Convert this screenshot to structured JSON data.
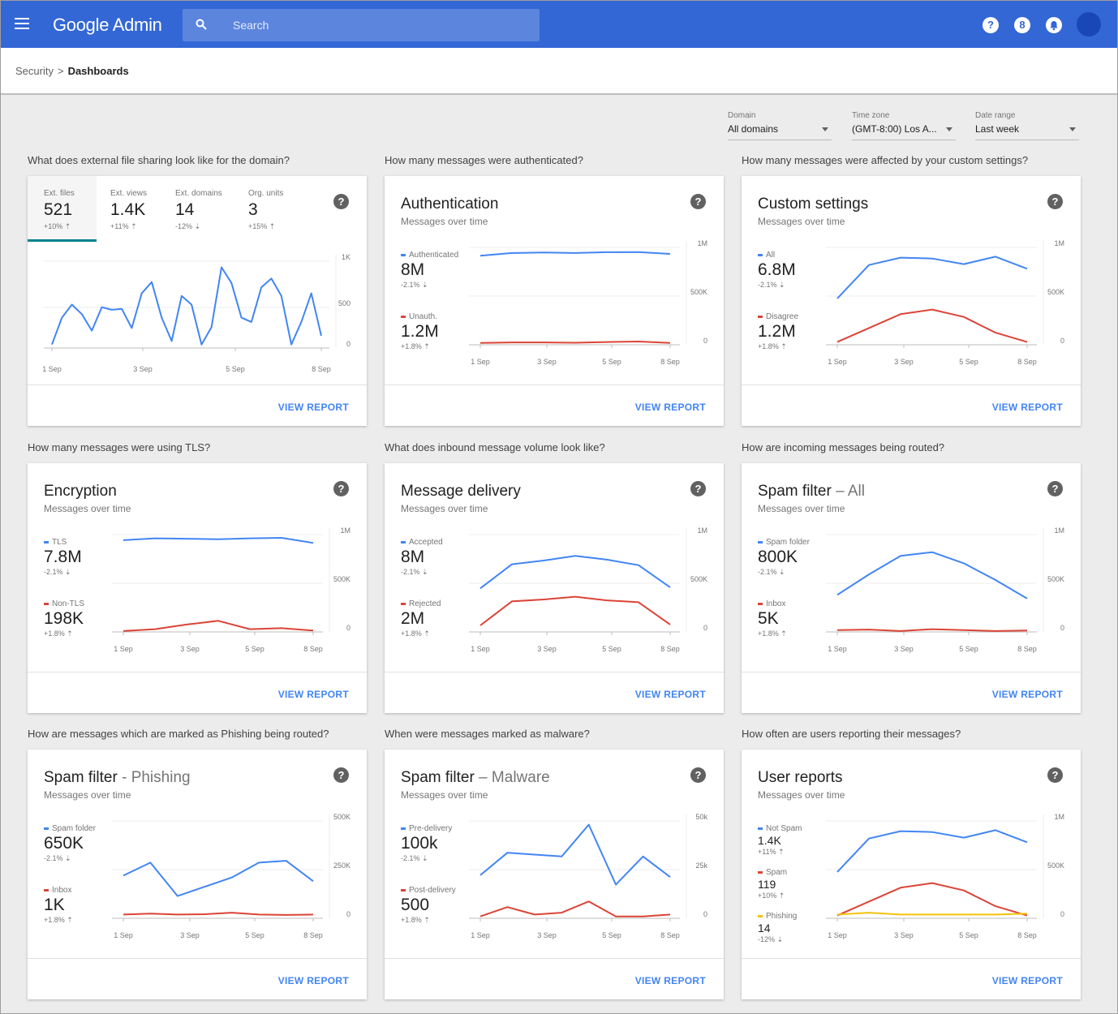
{
  "header": {
    "app_title": "Google Admin",
    "search_placeholder": "Search",
    "icons": [
      "help-icon",
      "apps-icon",
      "notifications-icon"
    ]
  },
  "breadcrumb": {
    "parent": "Security",
    "separator": ">",
    "current": "Dashboards"
  },
  "filters": [
    {
      "label": "Domain",
      "value": "All domains"
    },
    {
      "label": "Time zone",
      "value": "(GMT-8:00) Los A..."
    },
    {
      "label": "Date range",
      "value": "Last week"
    }
  ],
  "colors": {
    "blue": "#4285f4",
    "red": "#db4437",
    "yellow": "#f4c20d",
    "teal": "#00838f",
    "topbar": "#3367d6"
  },
  "view_report": "VIEW REPORT",
  "cards": [
    {
      "question": "What does external file sharing look like for the domain?",
      "tabs": [
        {
          "label": "Ext. files",
          "value": "521",
          "delta": "+10% ⇡"
        },
        {
          "label": "Ext. views",
          "value": "1.4K",
          "delta": "+11% ⇡"
        },
        {
          "label": "Ext. domains",
          "value": "14",
          "delta": "-12% ⇣"
        },
        {
          "label": "Org. units",
          "value": "3",
          "delta": "+15% ⇡"
        }
      ],
      "yticks": [
        "1K",
        "500",
        "0"
      ],
      "xticks": [
        "1 Sep",
        "3 Sep",
        "5 Sep",
        "8 Sep"
      ],
      "series": [
        {
          "color": "blue",
          "values": [
            40,
            350,
            500,
            390,
            200,
            470,
            440,
            450,
            230,
            630,
            760,
            350,
            80,
            600,
            500,
            40,
            240,
            930,
            750,
            350,
            300,
            700,
            800,
            600,
            40,
            300,
            630,
            140
          ]
        }
      ],
      "ymax": 1000
    },
    {
      "question": "How many messages were authenticated?",
      "title": "Authentication",
      "title_sub": "",
      "subtitle": "Messages over time",
      "legend": [
        {
          "name": "Authenticated",
          "color": "blue",
          "value": "8M",
          "delta": "-2.1% ⇣"
        },
        {
          "name": "Unauth.",
          "color": "red",
          "value": "1.2M",
          "delta": "+1.8% ⇡"
        }
      ],
      "yticks": [
        "1M",
        "500K",
        "0"
      ],
      "xticks": [
        "1 Sep",
        "3 Sep",
        "5 Sep",
        "8 Sep"
      ],
      "series": [
        {
          "color": "blue",
          "values": [
            960,
            990,
            995,
            990,
            998,
            1000,
            980
          ]
        },
        {
          "color": "red",
          "values": [
            20,
            25,
            25,
            22,
            30,
            35,
            20
          ]
        }
      ],
      "ymax": 1050
    },
    {
      "question": "How many messages were affected by your custom settings?",
      "title": "Custom settings",
      "title_sub": "",
      "subtitle": "Messages over time",
      "legend": [
        {
          "name": "All",
          "color": "blue",
          "value": "6.8M",
          "delta": "-2.1% ⇣"
        },
        {
          "name": "Disagree",
          "color": "red",
          "value": "1.2M",
          "delta": "+1.8% ⇡"
        }
      ],
      "yticks": [
        "1M",
        "500K",
        "0"
      ],
      "xticks": [
        "1 Sep",
        "3 Sep",
        "5 Sep",
        "8 Sep"
      ],
      "series": [
        {
          "color": "blue",
          "values": [
            500,
            860,
            940,
            930,
            870,
            950,
            820
          ]
        },
        {
          "color": "red",
          "values": [
            30,
            180,
            330,
            380,
            300,
            130,
            30
          ]
        }
      ],
      "ymax": 1050
    },
    {
      "question": "How many messages were using TLS?",
      "title": "Encryption",
      "title_sub": "",
      "subtitle": "Messages over time",
      "legend": [
        {
          "name": "TLS",
          "color": "blue",
          "value": "7.8M",
          "delta": "-2.1% ⇣"
        },
        {
          "name": "Non-TLS",
          "color": "red",
          "value": "198K",
          "delta": "+1.8% ⇡"
        }
      ],
      "yticks": [
        "1M",
        "500K",
        "0"
      ],
      "xticks": [
        "1 Sep",
        "3 Sep",
        "5 Sep",
        "8 Sep"
      ],
      "series": [
        {
          "color": "blue",
          "values": [
            990,
            1010,
            1005,
            1000,
            1010,
            1015,
            960
          ]
        },
        {
          "color": "red",
          "values": [
            10,
            30,
            80,
            120,
            30,
            40,
            15
          ]
        }
      ],
      "ymax": 1050
    },
    {
      "question": "What does inbound message volume look like?",
      "title": "Message delivery",
      "title_sub": "",
      "subtitle": "Messages over time",
      "legend": [
        {
          "name": "Accepted",
          "color": "blue",
          "value": "8M",
          "delta": "-2.1% ⇣"
        },
        {
          "name": "Rejected",
          "color": "red",
          "value": "2M",
          "delta": "+1.8% ⇡"
        }
      ],
      "yticks": [
        "1M",
        "500K",
        "0"
      ],
      "xticks": [
        "1 Sep",
        "3 Sep",
        "5 Sep",
        "8 Sep"
      ],
      "series": [
        {
          "color": "blue",
          "values": [
            470,
            730,
            770,
            820,
            780,
            720,
            480
          ]
        },
        {
          "color": "red",
          "values": [
            70,
            330,
            350,
            380,
            340,
            320,
            80
          ]
        }
      ],
      "ymax": 1050
    },
    {
      "question": "How are incoming messages being routed?",
      "title": "Spam filter",
      "title_sub": " – All",
      "subtitle": "Messages over time",
      "legend": [
        {
          "name": "Spam folder",
          "color": "blue",
          "value": "800K",
          "delta": "-2.1% ⇣"
        },
        {
          "name": "Inbox",
          "color": "red",
          "value": "5K",
          "delta": "+1.8% ⇡"
        }
      ],
      "yticks": [
        "1M",
        "500K",
        "0"
      ],
      "xticks": [
        "1 Sep",
        "3 Sep",
        "5 Sep",
        "8 Sep"
      ],
      "series": [
        {
          "color": "blue",
          "values": [
            400,
            620,
            820,
            860,
            740,
            560,
            360
          ]
        },
        {
          "color": "red",
          "values": [
            20,
            25,
            10,
            30,
            20,
            10,
            15
          ]
        }
      ],
      "ymax": 1050
    },
    {
      "question": "How are messages which are marked as Phishing being routed?",
      "title": "Spam filter",
      "title_sub": " - Phishing",
      "subtitle": "Messages over time",
      "legend": [
        {
          "name": "Spam folder",
          "color": "blue",
          "value": "650K",
          "delta": "-2.1% ⇣"
        },
        {
          "name": "Inbox",
          "color": "red",
          "value": "1K",
          "delta": "+1.8% ⇡"
        }
      ],
      "yticks": [
        "500K",
        "250K",
        "0"
      ],
      "xticks": [
        "1 Sep",
        "3 Sep",
        "5 Sep",
        "8 Sep"
      ],
      "series": [
        {
          "color": "blue",
          "values": [
            230,
            300,
            120,
            170,
            220,
            300,
            310,
            200
          ]
        },
        {
          "color": "red",
          "values": [
            20,
            25,
            20,
            22,
            30,
            20,
            18,
            20
          ]
        }
      ],
      "ymax": 525
    },
    {
      "question": "When were messages marked as malware?",
      "title": "Spam filter",
      "title_sub": " – Malware",
      "subtitle": "Messages over time",
      "legend": [
        {
          "name": "Pre-delivery",
          "color": "blue",
          "value": "100k",
          "delta": "-2.1% ⇣"
        },
        {
          "name": "Post-delivery",
          "color": "red",
          "value": "500",
          "delta": "+1.8% ⇡"
        }
      ],
      "yticks": [
        "50k",
        "25k",
        "0"
      ],
      "xticks": [
        "1 Sep",
        "3 Sep",
        "5 Sep",
        "8 Sep"
      ],
      "series": [
        {
          "color": "blue",
          "values": [
            23,
            35,
            34,
            33,
            50,
            18,
            33,
            22
          ]
        },
        {
          "color": "red",
          "values": [
            1,
            6,
            2,
            3,
            9,
            1,
            1,
            2
          ]
        }
      ],
      "ymax": 52
    },
    {
      "question": "How often are users reporting their messages?",
      "title": "User reports",
      "title_sub": "",
      "subtitle": "Messages over time",
      "legend": [
        {
          "name": "Not Spam",
          "color": "blue",
          "value": "1.4K",
          "delta": "+11% ⇡"
        },
        {
          "name": "Spam",
          "color": "red",
          "value": "119",
          "delta": "+10% ⇡"
        },
        {
          "name": "Phishing",
          "color": "yellow",
          "value": "14",
          "delta": "-12% ⇣"
        }
      ],
      "yticks": [
        "1M",
        "500K",
        "0"
      ],
      "xticks": [
        "1 Sep",
        "3 Sep",
        "5 Sep",
        "8 Sep"
      ],
      "series": [
        {
          "color": "blue",
          "values": [
            500,
            860,
            940,
            930,
            870,
            950,
            820
          ]
        },
        {
          "color": "red",
          "values": [
            30,
            180,
            330,
            380,
            300,
            130,
            30
          ]
        },
        {
          "color": "yellow",
          "values": [
            40,
            60,
            40,
            40,
            40,
            40,
            50
          ]
        }
      ],
      "ymax": 1050
    }
  ]
}
